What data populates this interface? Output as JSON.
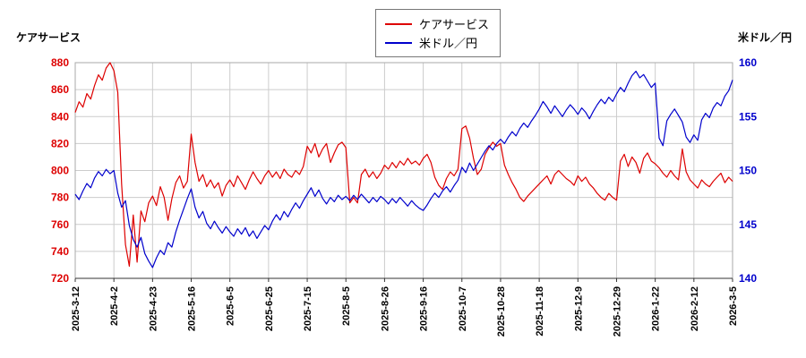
{
  "chart_data": {
    "type": "line",
    "title": "",
    "grid": true,
    "grid_color": "#cccccc",
    "background": "#ffffff",
    "legend": {
      "position": "top-center",
      "entries": [
        "ケアサービス",
        "米ドル／円"
      ]
    },
    "y_left": {
      "title": "ケアサービス",
      "min": 720,
      "max": 880,
      "step": 20,
      "color": "#dd0000"
    },
    "y_right": {
      "title": "米ドル／円",
      "min": 140,
      "max": 160,
      "step": 5,
      "color": "#0000cc"
    },
    "x_tick_labels": [
      "2025-3-12",
      "2025-4-2",
      "2025-4-23",
      "2025-5-16",
      "2025-6-5",
      "2025-6-25",
      "2025-7-15",
      "2025-8-5",
      "2025-8-26",
      "2025-9-16",
      "2025-10-7",
      "2025-10-28",
      "2025-11-18",
      "2025-12-9",
      "2025-12-29",
      "2026-1-22",
      "2026-2-12",
      "2026-3-5"
    ],
    "series": [
      {
        "name": "ケアサービス",
        "axis": "left",
        "color": "#dd0000",
        "values": [
          843,
          851,
          847,
          857,
          853,
          863,
          871,
          867,
          876,
          880,
          874,
          858,
          790,
          745,
          729,
          767,
          732,
          770,
          762,
          776,
          781,
          774,
          788,
          780,
          763,
          779,
          791,
          796,
          787,
          792,
          827,
          806,
          792,
          797,
          788,
          793,
          787,
          791,
          781,
          789,
          793,
          788,
          796,
          791,
          786,
          793,
          799,
          794,
          790,
          796,
          800,
          795,
          799,
          794,
          801,
          797,
          795,
          800,
          797,
          803,
          818,
          813,
          820,
          810,
          816,
          820,
          806,
          813,
          819,
          821,
          817,
          776,
          780,
          776,
          797,
          801,
          795,
          799,
          794,
          798,
          804,
          801,
          806,
          802,
          807,
          804,
          809,
          805,
          807,
          804,
          809,
          812,
          806,
          795,
          789,
          786,
          794,
          799,
          796,
          801,
          831,
          833,
          824,
          809,
          797,
          801,
          812,
          817,
          821,
          818,
          820,
          804,
          797,
          791,
          786,
          780,
          777,
          781,
          784,
          787,
          790,
          793,
          796,
          790,
          797,
          800,
          797,
          794,
          792,
          789,
          796,
          792,
          795,
          790,
          787,
          783,
          780,
          778,
          783,
          780,
          778,
          807,
          812,
          803,
          810,
          806,
          798,
          809,
          813,
          807,
          805,
          802,
          798,
          795,
          800,
          796,
          793,
          816,
          799,
          793,
          790,
          787,
          793,
          790,
          788,
          792,
          795,
          798,
          791,
          795,
          792
        ]
      },
      {
        "name": "米ドル／円",
        "axis": "right",
        "color": "#0000cc",
        "values": [
          147.8,
          147.3,
          148.1,
          148.8,
          148.4,
          149.3,
          149.9,
          149.5,
          150.1,
          149.7,
          150.0,
          147.9,
          146.6,
          147.2,
          144.9,
          143.6,
          142.9,
          143.8,
          142.3,
          141.6,
          141.0,
          141.9,
          142.6,
          142.2,
          143.3,
          142.9,
          144.3,
          145.4,
          146.4,
          147.4,
          148.3,
          146.6,
          145.6,
          146.2,
          145.1,
          144.6,
          145.3,
          144.7,
          144.2,
          144.8,
          144.3,
          143.9,
          144.6,
          144.1,
          144.7,
          143.9,
          144.4,
          143.7,
          144.3,
          144.9,
          144.5,
          145.3,
          145.9,
          145.4,
          146.2,
          145.7,
          146.4,
          147.0,
          146.5,
          147.2,
          147.8,
          148.4,
          147.6,
          148.2,
          147.4,
          146.9,
          147.5,
          147.1,
          147.7,
          147.3,
          147.6,
          147.2,
          147.7,
          147.3,
          147.8,
          147.4,
          147.0,
          147.5,
          147.1,
          147.6,
          147.3,
          146.9,
          147.4,
          147.0,
          147.5,
          147.1,
          146.7,
          147.2,
          146.8,
          146.5,
          146.3,
          146.8,
          147.4,
          147.9,
          147.5,
          148.1,
          148.5,
          148.0,
          148.6,
          149.1,
          150.3,
          149.8,
          150.7,
          150.0,
          150.6,
          151.2,
          151.8,
          152.3,
          151.9,
          152.5,
          152.9,
          152.5,
          153.1,
          153.6,
          153.2,
          153.9,
          154.4,
          154.0,
          154.6,
          155.1,
          155.7,
          156.4,
          155.9,
          155.3,
          156.0,
          155.5,
          155.0,
          155.6,
          156.1,
          155.7,
          155.2,
          155.8,
          155.4,
          154.8,
          155.5,
          156.1,
          156.6,
          156.2,
          156.8,
          156.4,
          157.1,
          157.7,
          157.3,
          158.1,
          158.8,
          159.2,
          158.6,
          158.9,
          158.3,
          157.7,
          158.1,
          153.0,
          152.3,
          154.6,
          155.2,
          155.7,
          155.1,
          154.5,
          153.1,
          152.6,
          153.3,
          152.8,
          154.7,
          155.3,
          154.9,
          155.8,
          156.3,
          156.0,
          156.9,
          157.4,
          158.4
        ]
      }
    ]
  }
}
